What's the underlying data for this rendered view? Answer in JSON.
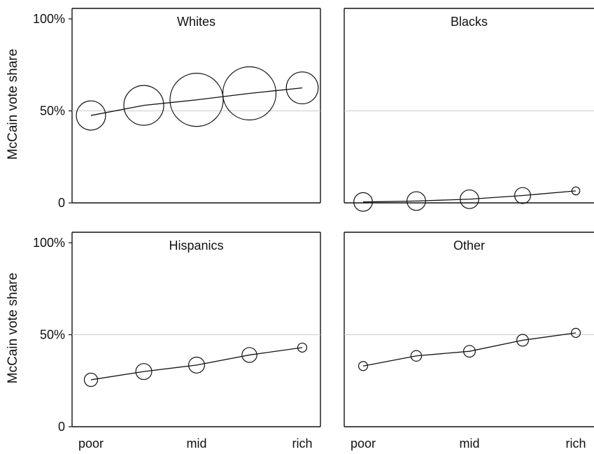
{
  "chart_data": {
    "type": "scatter",
    "ylabel": "McCain vote share",
    "ylim": [
      0,
      100
    ],
    "y_ticks": [
      {
        "value": 0,
        "label": "0"
      },
      {
        "value": 50,
        "label": "50%"
      },
      {
        "value": 100,
        "label": "100%"
      }
    ],
    "x_categories": [
      "poor",
      "",
      "mid",
      "",
      "rich"
    ],
    "x_tick_labels": [
      "poor",
      "mid",
      "rich"
    ],
    "reference_line": 50,
    "line_color": "#111111",
    "gridline_color": "#cccccc",
    "panels": [
      {
        "title": "Whites",
        "values": [
          47.5,
          53,
          56,
          59.5,
          62.5
        ],
        "relative_sizes": [
          0.55,
          0.75,
          1.0,
          1.0,
          0.6
        ]
      },
      {
        "title": "Blacks",
        "values": [
          0.5,
          1,
          2,
          4,
          6.5
        ],
        "relative_sizes": [
          0.35,
          0.35,
          0.35,
          0.3,
          0.15
        ]
      },
      {
        "title": "Hispanics",
        "values": [
          25.5,
          30,
          33.5,
          39,
          43
        ],
        "relative_sizes": [
          0.25,
          0.3,
          0.3,
          0.28,
          0.17
        ]
      },
      {
        "title": "Other",
        "values": [
          33,
          38.5,
          41,
          47,
          51
        ],
        "relative_sizes": [
          0.17,
          0.2,
          0.22,
          0.22,
          0.17
        ]
      }
    ]
  }
}
